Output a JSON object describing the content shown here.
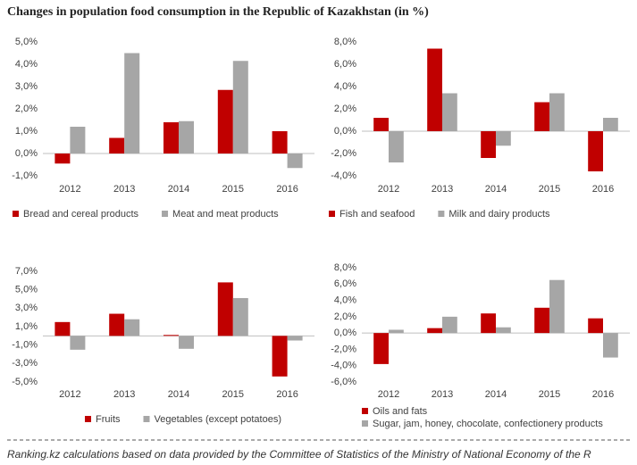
{
  "title": "Changes in population food consumption in the Republic of Kazakhstan (in %)",
  "source": "Ranking.kz calculations based on data provided by the Committee of Statistics of the Ministry of National Economy of the R",
  "chart_data": [
    {
      "type": "bar",
      "categories": [
        "2012",
        "2013",
        "2014",
        "2015",
        "2016"
      ],
      "series": [
        {
          "name": "Bread and cereal products",
          "color": "#c00000",
          "values": [
            -0.45,
            0.7,
            1.4,
            2.85,
            1.0
          ]
        },
        {
          "name": "Meat and meat products",
          "color": "#a6a6a6",
          "values": [
            1.2,
            4.5,
            1.45,
            4.15,
            -0.65
          ]
        }
      ],
      "ylim": [
        -1,
        5
      ],
      "yticks": [
        {
          "value": -1,
          "label": "-1,0%"
        },
        {
          "value": 0,
          "label": "0,0%"
        },
        {
          "value": 1,
          "label": "1,0%"
        },
        {
          "value": 2,
          "label": "2,0%"
        },
        {
          "value": 3,
          "label": "3,0%"
        },
        {
          "value": 4,
          "label": "4,0%"
        },
        {
          "value": 5,
          "label": "5,0%"
        }
      ]
    },
    {
      "type": "bar",
      "categories": [
        "2012",
        "2013",
        "2014",
        "2015",
        "2016"
      ],
      "series": [
        {
          "name": "Fish and seafood",
          "color": "#c00000",
          "values": [
            1.2,
            7.4,
            -2.4,
            2.6,
            -3.6
          ]
        },
        {
          "name": "Milk and dairy products",
          "color": "#a6a6a6",
          "values": [
            -2.8,
            3.4,
            -1.3,
            3.4,
            1.2
          ]
        }
      ],
      "ylim": [
        -4,
        8
      ],
      "yticks": [
        {
          "value": -4,
          "label": "-4,0%"
        },
        {
          "value": -2,
          "label": "-2,0%"
        },
        {
          "value": 0,
          "label": "0,0%"
        },
        {
          "value": 2,
          "label": "2,0%"
        },
        {
          "value": 4,
          "label": "4,0%"
        },
        {
          "value": 6,
          "label": "6,0%"
        },
        {
          "value": 8,
          "label": "8,0%"
        }
      ]
    },
    {
      "type": "bar",
      "categories": [
        "2012",
        "2013",
        "2014",
        "2015",
        "2016"
      ],
      "series": [
        {
          "name": "Fruits",
          "color": "#c00000",
          "values": [
            1.5,
            2.4,
            0.1,
            5.8,
            -4.4
          ]
        },
        {
          "name": "Vegetables (except potatoes)",
          "color": "#a6a6a6",
          "values": [
            -1.5,
            1.8,
            -1.4,
            4.1,
            -0.5
          ]
        }
      ],
      "ylim": [
        -5,
        7
      ],
      "yticks": [
        {
          "value": -5,
          "label": "-5,0%"
        },
        {
          "value": -3,
          "label": "-3,0%"
        },
        {
          "value": -1,
          "label": "-1,0%"
        },
        {
          "value": 1,
          "label": "1,0%"
        },
        {
          "value": 3,
          "label": "3,0%"
        },
        {
          "value": 5,
          "label": "5,0%"
        },
        {
          "value": 7,
          "label": "7,0%"
        }
      ]
    },
    {
      "type": "bar",
      "categories": [
        "2012",
        "2013",
        "2014",
        "2015",
        "2016"
      ],
      "series": [
        {
          "name": "Oils and fats",
          "color": "#c00000",
          "values": [
            -3.8,
            0.6,
            2.4,
            3.1,
            1.8
          ]
        },
        {
          "name": "Sugar, jam, honey, chocolate, confectionery products",
          "color": "#a6a6a6",
          "values": [
            0.4,
            2.0,
            0.7,
            6.5,
            -3.0
          ]
        }
      ],
      "ylim": [
        -6,
        8
      ],
      "yticks": [
        {
          "value": -6,
          "label": "-6,0%"
        },
        {
          "value": -4,
          "label": "-4,0%"
        },
        {
          "value": -2,
          "label": "-2,0%"
        },
        {
          "value": 0,
          "label": "0,0%"
        },
        {
          "value": 2,
          "label": "2,0%"
        },
        {
          "value": 4,
          "label": "4,0%"
        },
        {
          "value": 6,
          "label": "6,0%"
        },
        {
          "value": 8,
          "label": "8,0%"
        }
      ]
    }
  ]
}
